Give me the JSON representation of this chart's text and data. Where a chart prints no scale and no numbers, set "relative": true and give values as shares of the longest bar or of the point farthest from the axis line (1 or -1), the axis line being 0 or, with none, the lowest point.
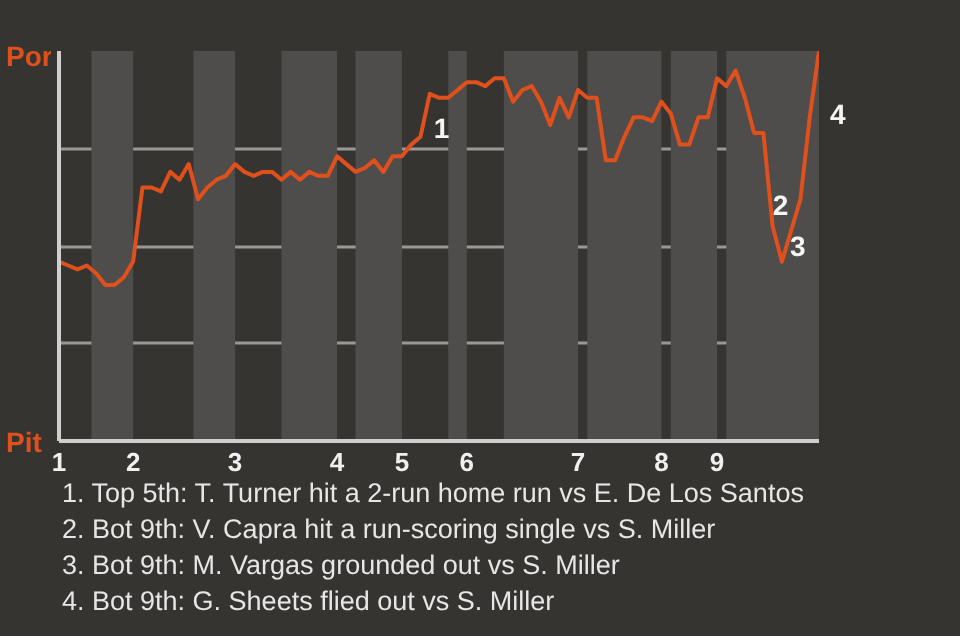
{
  "chart_data": {
    "type": "line",
    "relative": true,
    "categories": [
      "1",
      null,
      null,
      null,
      null,
      null,
      null,
      null,
      "2",
      null,
      null,
      null,
      null,
      null,
      null,
      null,
      null,
      null,
      null,
      "3",
      null,
      null,
      null,
      null,
      null,
      null,
      null,
      null,
      null,
      null,
      "4",
      null,
      null,
      null,
      null,
      null,
      null,
      "5",
      null,
      null,
      null,
      null,
      null,
      null,
      "6",
      null,
      null,
      null,
      null,
      null,
      null,
      null,
      null,
      null,
      null,
      null,
      "7",
      null,
      null,
      null,
      null,
      null,
      null,
      null,
      null,
      "8",
      null,
      null,
      null,
      null,
      null,
      "9",
      null,
      null,
      null,
      null,
      null,
      null,
      null,
      null,
      null,
      null,
      null
    ],
    "series": [
      {
        "color": "#e0501c",
        "values": [
          0.46,
          0.45,
          0.44,
          0.45,
          0.43,
          0.4,
          0.4,
          0.42,
          0.46,
          0.65,
          0.65,
          0.64,
          0.69,
          0.67,
          0.71,
          0.62,
          0.65,
          0.67,
          0.68,
          0.71,
          0.69,
          0.68,
          0.69,
          0.69,
          0.67,
          0.69,
          0.67,
          0.69,
          0.68,
          0.68,
          0.73,
          0.71,
          0.69,
          0.7,
          0.72,
          0.69,
          0.73,
          0.73,
          0.76,
          0.78,
          0.89,
          0.88,
          0.88,
          0.9,
          0.92,
          0.92,
          0.91,
          0.93,
          0.93,
          0.87,
          0.9,
          0.91,
          0.87,
          0.81,
          0.88,
          0.83,
          0.9,
          0.88,
          0.88,
          0.72,
          0.72,
          0.78,
          0.83,
          0.83,
          0.82,
          0.87,
          0.84,
          0.76,
          0.76,
          0.83,
          0.83,
          0.93,
          0.91,
          0.95,
          0.88,
          0.79,
          0.79,
          0.55,
          0.46,
          0.54,
          0.62,
          0.83,
          1.0
        ]
      }
    ],
    "grid": "y",
    "marker": "none",
    "line_style": "solid",
    "annotations": [
      "Por",
      "Pit",
      "1",
      "2",
      "3",
      "4",
      "1. Top 5th: T. Turner hit a 2-run home run vs E. De Los Santos",
      "2. Bot 9th: V. Capra hit a run-scoring single vs S. Miller",
      "3. Bot 9th: M. Vargas grounded out vs S. Miller",
      "4. Bot 9th: G. Sheets flied out vs S. Miller"
    ]
  }
}
